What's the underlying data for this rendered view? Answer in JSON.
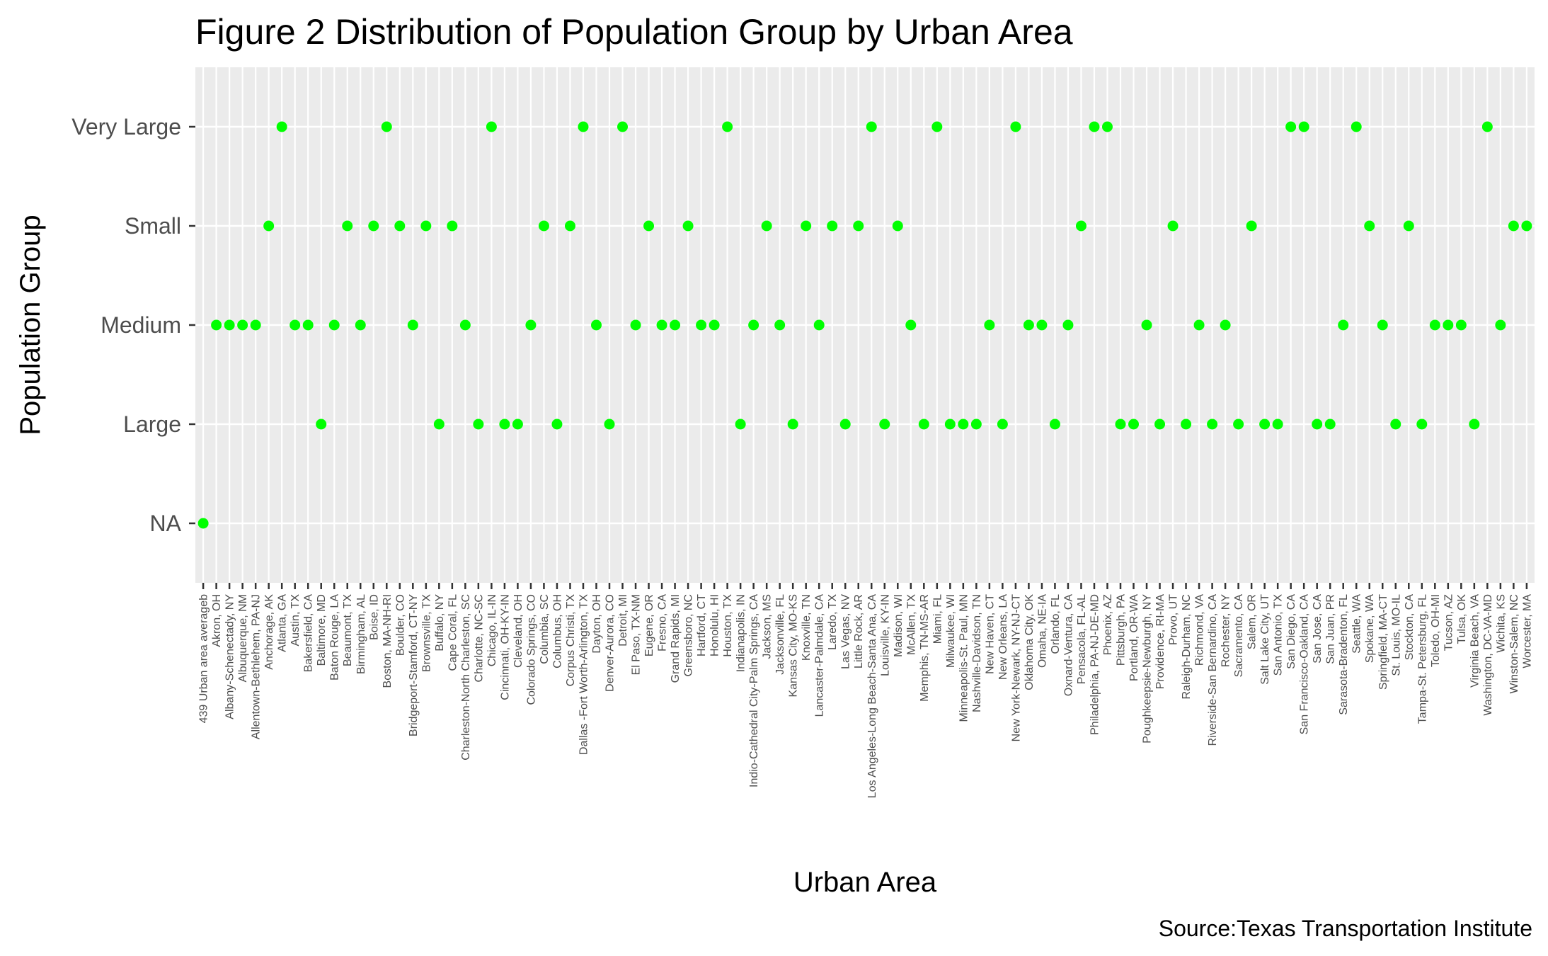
{
  "chart_data": {
    "type": "scatter",
    "title": "Figure 2 Distribution of Population Group by Urban Area",
    "xlabel": "Urban Area",
    "ylabel": "Population Group",
    "caption": "Source:Texas Transportation Institute",
    "y_categories": [
      "NA",
      "Large",
      "Medium",
      "Small",
      "Very Large"
    ],
    "point_color": "#00FF00",
    "panel_color": "#EBEBEB",
    "grid": true,
    "legend": "none",
    "points": [
      {
        "x": "439 Urban area averageb",
        "y": "NA"
      },
      {
        "x": "Akron, OH",
        "y": "Medium"
      },
      {
        "x": "Albany-Schenectady, NY",
        "y": "Medium"
      },
      {
        "x": "Albuquerque, NM",
        "y": "Medium"
      },
      {
        "x": "Allentown-Bethlehem, PA-NJ",
        "y": "Medium"
      },
      {
        "x": "Anchorage, AK",
        "y": "Small"
      },
      {
        "x": "Atlanta, GA",
        "y": "Very Large"
      },
      {
        "x": "Austin, TX",
        "y": "Medium"
      },
      {
        "x": "Bakersfield, CA",
        "y": "Medium"
      },
      {
        "x": "Baltimore, MD",
        "y": "Large"
      },
      {
        "x": "Baton Rouge, LA",
        "y": "Medium"
      },
      {
        "x": "Beaumont, TX",
        "y": "Small"
      },
      {
        "x": "Birmingham, AL",
        "y": "Medium"
      },
      {
        "x": "Boise, ID",
        "y": "Small"
      },
      {
        "x": "Boston, MA-NH-RI",
        "y": "Very Large"
      },
      {
        "x": "Boulder, CO",
        "y": "Small"
      },
      {
        "x": "Bridgeport-Stamford, CT-NY",
        "y": "Medium"
      },
      {
        "x": "Brownsville, TX",
        "y": "Small"
      },
      {
        "x": "Buffalo, NY",
        "y": "Large"
      },
      {
        "x": "Cape Coral, FL",
        "y": "Small"
      },
      {
        "x": "Charleston-North Charleston, SC",
        "y": "Medium"
      },
      {
        "x": "Charlotte, NC-SC",
        "y": "Large"
      },
      {
        "x": "Chicago, IL-IN",
        "y": "Very Large"
      },
      {
        "x": "Cincinnati, OH-KY-IN",
        "y": "Large"
      },
      {
        "x": "Cleveland, OH",
        "y": "Large"
      },
      {
        "x": "Colorado Springs, CO",
        "y": "Medium"
      },
      {
        "x": "Columbia, SC",
        "y": "Small"
      },
      {
        "x": "Columbus, OH",
        "y": "Large"
      },
      {
        "x": "Corpus Christi, TX",
        "y": "Small"
      },
      {
        "x": "Dallas -Fort Worth-Arlington, TX",
        "y": "Very Large"
      },
      {
        "x": "Dayton, OH",
        "y": "Medium"
      },
      {
        "x": "Denver-Aurora, CO",
        "y": "Large"
      },
      {
        "x": "Detroit, MI",
        "y": "Very Large"
      },
      {
        "x": "El Paso, TX-NM",
        "y": "Medium"
      },
      {
        "x": "Eugene, OR",
        "y": "Small"
      },
      {
        "x": "Fresno, CA",
        "y": "Medium"
      },
      {
        "x": "Grand Rapids, MI",
        "y": "Medium"
      },
      {
        "x": "Greensboro, NC",
        "y": "Small"
      },
      {
        "x": "Hartford, CT",
        "y": "Medium"
      },
      {
        "x": "Honolulu, HI",
        "y": "Medium"
      },
      {
        "x": "Houston, TX",
        "y": "Very Large"
      },
      {
        "x": "Indianapolis, IN",
        "y": "Large"
      },
      {
        "x": "Indio-Cathedral City-Palm Springs, CA",
        "y": "Medium"
      },
      {
        "x": "Jackson, MS",
        "y": "Small"
      },
      {
        "x": "Jacksonville, FL",
        "y": "Medium"
      },
      {
        "x": "Kansas City, MO-KS",
        "y": "Large"
      },
      {
        "x": "Knoxville, TN",
        "y": "Small"
      },
      {
        "x": "Lancaster-Palmdale, CA",
        "y": "Medium"
      },
      {
        "x": "Laredo, TX",
        "y": "Small"
      },
      {
        "x": "Las Vegas, NV",
        "y": "Large"
      },
      {
        "x": "Little Rock, AR",
        "y": "Small"
      },
      {
        "x": "Los Angeles-Long Beach-Santa Ana, CA",
        "y": "Very Large"
      },
      {
        "x": "Louisville, KY-IN",
        "y": "Large"
      },
      {
        "x": "Madison, WI",
        "y": "Small"
      },
      {
        "x": "McAllen, TX",
        "y": "Medium"
      },
      {
        "x": "Memphis, TN-MS-AR",
        "y": "Large"
      },
      {
        "x": "Miami, FL",
        "y": "Very Large"
      },
      {
        "x": "Milwaukee, WI",
        "y": "Large"
      },
      {
        "x": "Minneapolis-St. Paul, MN",
        "y": "Large"
      },
      {
        "x": "Nashville-Davidson, TN",
        "y": "Large"
      },
      {
        "x": "New Haven, CT",
        "y": "Medium"
      },
      {
        "x": "New Orleans, LA",
        "y": "Large"
      },
      {
        "x": "New York-Newark, NY-NJ-CT",
        "y": "Very Large"
      },
      {
        "x": "Oklahoma City, OK",
        "y": "Medium"
      },
      {
        "x": "Omaha, NE-IA",
        "y": "Medium"
      },
      {
        "x": "Orlando, FL",
        "y": "Large"
      },
      {
        "x": "Oxnard-Ventura, CA",
        "y": "Medium"
      },
      {
        "x": "Pensacola, FL-AL",
        "y": "Small"
      },
      {
        "x": "Philadelphia, PA-NJ-DE-MD",
        "y": "Very Large"
      },
      {
        "x": "Phoenix, AZ",
        "y": "Very Large"
      },
      {
        "x": "Pittsburgh, PA",
        "y": "Large"
      },
      {
        "x": "Portland, OR-WA",
        "y": "Large"
      },
      {
        "x": "Poughkeepsie-Newburgh, NY",
        "y": "Medium"
      },
      {
        "x": "Providence, RI-MA",
        "y": "Large"
      },
      {
        "x": "Provo, UT",
        "y": "Small"
      },
      {
        "x": "Raleigh-Durham, NC",
        "y": "Large"
      },
      {
        "x": "Richmond, VA",
        "y": "Medium"
      },
      {
        "x": "Riverside-San Bernardino, CA",
        "y": "Large"
      },
      {
        "x": "Rochester, NY",
        "y": "Medium"
      },
      {
        "x": "Sacramento, CA",
        "y": "Large"
      },
      {
        "x": "Salem, OR",
        "y": "Small"
      },
      {
        "x": "Salt Lake City, UT",
        "y": "Large"
      },
      {
        "x": "San Antonio, TX",
        "y": "Large"
      },
      {
        "x": "San Diego, CA",
        "y": "Very Large"
      },
      {
        "x": "San Francisco-Oakland, CA",
        "y": "Very Large"
      },
      {
        "x": "San Jose, CA",
        "y": "Large"
      },
      {
        "x": "San Juan, PR",
        "y": "Large"
      },
      {
        "x": "Sarasota-Bradenton, FL",
        "y": "Medium"
      },
      {
        "x": "Seattle, WA",
        "y": "Very Large"
      },
      {
        "x": "Spokane, WA",
        "y": "Small"
      },
      {
        "x": "Springfield, MA-CT",
        "y": "Medium"
      },
      {
        "x": "St. Louis, MO-IL",
        "y": "Large"
      },
      {
        "x": "Stockton, CA",
        "y": "Small"
      },
      {
        "x": "Tampa-St. Petersburg, FL",
        "y": "Large"
      },
      {
        "x": "Toledo, OH-MI",
        "y": "Medium"
      },
      {
        "x": "Tucson, AZ",
        "y": "Medium"
      },
      {
        "x": "Tulsa, OK",
        "y": "Medium"
      },
      {
        "x": "Virginia Beach, VA",
        "y": "Large"
      },
      {
        "x": "Washington, DC-VA-MD",
        "y": "Very Large"
      },
      {
        "x": "Wichita, KS",
        "y": "Medium"
      },
      {
        "x": "Winston-Salem, NC",
        "y": "Small"
      },
      {
        "x": "Worcester, MA",
        "y": "Small"
      }
    ]
  }
}
